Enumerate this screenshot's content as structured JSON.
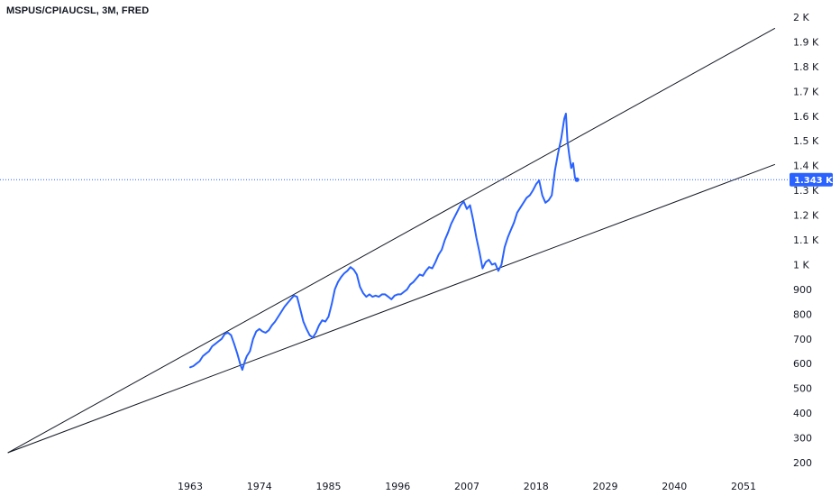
{
  "chart_data": {
    "type": "line",
    "title": "MSPUS/CPIAUCSL, 3M, FRED",
    "xlabel": "",
    "ylabel": "",
    "x_ticks": [
      "1963",
      "1974",
      "1985",
      "1996",
      "2007",
      "2018",
      "2029",
      "2040",
      "2051"
    ],
    "y_ticks": [
      {
        "value": 200,
        "label": "200"
      },
      {
        "value": 300,
        "label": "300"
      },
      {
        "value": 400,
        "label": "400"
      },
      {
        "value": 500,
        "label": "500"
      },
      {
        "value": 600,
        "label": "600"
      },
      {
        "value": 700,
        "label": "700"
      },
      {
        "value": 800,
        "label": "800"
      },
      {
        "value": 900,
        "label": "900"
      },
      {
        "value": 1000,
        "label": "1 K"
      },
      {
        "value": 1100,
        "label": "1.1 K"
      },
      {
        "value": 1200,
        "label": "1.2 K"
      },
      {
        "value": 1300,
        "label": "1.3 K"
      },
      {
        "value": 1400,
        "label": "1.4 K"
      },
      {
        "value": 1500,
        "label": "1.5 K"
      },
      {
        "value": 1600,
        "label": "1.6 K"
      },
      {
        "value": 1700,
        "label": "1.7 K"
      },
      {
        "value": 1800,
        "label": "1.8 K"
      },
      {
        "value": 1900,
        "label": "1.9 K"
      },
      {
        "value": 2000,
        "label": "2 K"
      }
    ],
    "series": [
      {
        "color": "#2962ff",
        "points": [
          [
            1963.0,
            585
          ],
          [
            1963.5,
            590
          ],
          [
            1964.0,
            600
          ],
          [
            1964.5,
            610
          ],
          [
            1965.0,
            630
          ],
          [
            1965.5,
            640
          ],
          [
            1966.0,
            650
          ],
          [
            1966.5,
            670
          ],
          [
            1967.0,
            680
          ],
          [
            1967.5,
            690
          ],
          [
            1968.0,
            700
          ],
          [
            1968.5,
            720
          ],
          [
            1969.0,
            725
          ],
          [
            1969.5,
            715
          ],
          [
            1970.0,
            680
          ],
          [
            1970.5,
            640
          ],
          [
            1971.0,
            595
          ],
          [
            1971.3,
            575
          ],
          [
            1971.7,
            610
          ],
          [
            1972.0,
            630
          ],
          [
            1972.5,
            650
          ],
          [
            1973.0,
            700
          ],
          [
            1973.5,
            730
          ],
          [
            1974.0,
            740
          ],
          [
            1974.5,
            730
          ],
          [
            1975.0,
            725
          ],
          [
            1975.5,
            735
          ],
          [
            1976.0,
            755
          ],
          [
            1976.5,
            770
          ],
          [
            1977.0,
            790
          ],
          [
            1977.5,
            810
          ],
          [
            1978.0,
            830
          ],
          [
            1978.5,
            845
          ],
          [
            1979.0,
            860
          ],
          [
            1979.5,
            875
          ],
          [
            1980.0,
            870
          ],
          [
            1980.5,
            820
          ],
          [
            1981.0,
            770
          ],
          [
            1981.5,
            740
          ],
          [
            1982.0,
            715
          ],
          [
            1982.5,
            705
          ],
          [
            1983.0,
            725
          ],
          [
            1983.5,
            755
          ],
          [
            1984.0,
            775
          ],
          [
            1984.5,
            770
          ],
          [
            1985.0,
            790
          ],
          [
            1985.5,
            840
          ],
          [
            1986.0,
            900
          ],
          [
            1986.5,
            930
          ],
          [
            1987.0,
            950
          ],
          [
            1987.5,
            965
          ],
          [
            1988.0,
            975
          ],
          [
            1988.5,
            990
          ],
          [
            1989.0,
            980
          ],
          [
            1989.5,
            960
          ],
          [
            1990.0,
            910
          ],
          [
            1990.5,
            885
          ],
          [
            1991.0,
            870
          ],
          [
            1991.5,
            880
          ],
          [
            1992.0,
            870
          ],
          [
            1992.5,
            875
          ],
          [
            1993.0,
            870
          ],
          [
            1993.5,
            880
          ],
          [
            1994.0,
            880
          ],
          [
            1994.5,
            870
          ],
          [
            1995.0,
            860
          ],
          [
            1995.5,
            875
          ],
          [
            1996.0,
            880
          ],
          [
            1996.5,
            880
          ],
          [
            1997.0,
            890
          ],
          [
            1997.5,
            900
          ],
          [
            1998.0,
            920
          ],
          [
            1998.5,
            930
          ],
          [
            1999.0,
            945
          ],
          [
            1999.5,
            960
          ],
          [
            2000.0,
            955
          ],
          [
            2000.5,
            975
          ],
          [
            2001.0,
            990
          ],
          [
            2001.5,
            985
          ],
          [
            2002.0,
            1010
          ],
          [
            2002.5,
            1040
          ],
          [
            2003.0,
            1060
          ],
          [
            2003.5,
            1100
          ],
          [
            2004.0,
            1130
          ],
          [
            2004.5,
            1165
          ],
          [
            2005.0,
            1190
          ],
          [
            2005.5,
            1215
          ],
          [
            2006.0,
            1240
          ],
          [
            2006.5,
            1255
          ],
          [
            2007.0,
            1225
          ],
          [
            2007.5,
            1240
          ],
          [
            2008.0,
            1180
          ],
          [
            2008.5,
            1110
          ],
          [
            2009.0,
            1050
          ],
          [
            2009.5,
            985
          ],
          [
            2010.0,
            1010
          ],
          [
            2010.5,
            1020
          ],
          [
            2011.0,
            1000
          ],
          [
            2011.5,
            1005
          ],
          [
            2012.0,
            975
          ],
          [
            2012.5,
            1000
          ],
          [
            2013.0,
            1070
          ],
          [
            2013.5,
            1110
          ],
          [
            2014.0,
            1140
          ],
          [
            2014.5,
            1170
          ],
          [
            2015.0,
            1210
          ],
          [
            2015.5,
            1230
          ],
          [
            2016.0,
            1250
          ],
          [
            2016.5,
            1270
          ],
          [
            2017.0,
            1280
          ],
          [
            2017.5,
            1300
          ],
          [
            2018.0,
            1325
          ],
          [
            2018.5,
            1340
          ],
          [
            2019.0,
            1280
          ],
          [
            2019.5,
            1250
          ],
          [
            2020.0,
            1260
          ],
          [
            2020.5,
            1280
          ],
          [
            2021.0,
            1380
          ],
          [
            2021.5,
            1450
          ],
          [
            2022.0,
            1510
          ],
          [
            2022.5,
            1590
          ],
          [
            2022.75,
            1610
          ],
          [
            2023.0,
            1500
          ],
          [
            2023.3,
            1440
          ],
          [
            2023.6,
            1390
          ],
          [
            2023.9,
            1410
          ],
          [
            2024.2,
            1350
          ],
          [
            2024.5,
            1343
          ]
        ]
      }
    ],
    "trendlines": [
      {
        "color": "#131722",
        "points": [
          [
            1934.0,
            240
          ],
          [
            2056.0,
            1955
          ]
        ]
      },
      {
        "color": "#131722",
        "points": [
          [
            1934.0,
            240
          ],
          [
            2056.0,
            1405
          ]
        ]
      }
    ],
    "last_value": {
      "value": 1343,
      "label": "1.343 K",
      "color": "#2962ff"
    }
  }
}
